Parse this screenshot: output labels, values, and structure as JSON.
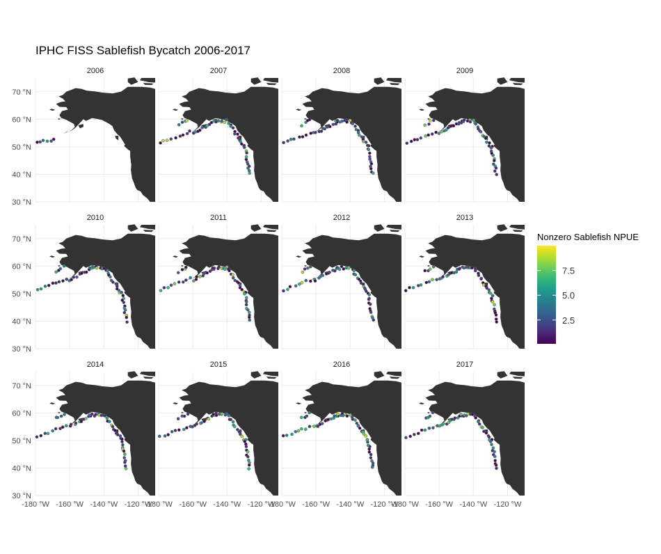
{
  "chart_data": {
    "type": "scatter",
    "title": "IPHC FISS Sablefish Bycatch 2006-2017",
    "facets": [
      "2006",
      "2007",
      "2008",
      "2009",
      "2010",
      "2011",
      "2012",
      "2013",
      "2014",
      "2015",
      "2016",
      "2017"
    ],
    "xlim": [
      -180,
      -110
    ],
    "ylim": [
      30,
      75
    ],
    "x_ticks": [
      -180,
      -160,
      -140,
      -120
    ],
    "x_tick_labels": [
      "-180 °W",
      "-160 °W",
      "-140 °W",
      "-120 °W"
    ],
    "y_ticks": [
      30,
      40,
      50,
      60,
      70
    ],
    "y_tick_labels": [
      "30 °N",
      "40 °N",
      "50 °N",
      "60 °N",
      "70 °N"
    ],
    "grid": true,
    "legend": {
      "title": "Nonzero Sablefish NPUE",
      "placement": "right",
      "ticks": [
        2.5,
        5.0,
        7.5
      ],
      "tick_labels": [
        "2.5",
        "5.0",
        "7.5"
      ],
      "range": [
        0.1,
        10
      ],
      "colors": [
        "#440154",
        "#482878",
        "#3e4a89",
        "#31688e",
        "#26828e",
        "#1f9e89",
        "#35b779",
        "#6ece58",
        "#b5de2b",
        "#fde725"
      ]
    },
    "land_color": "#333333",
    "point_outline": "#666666"
  }
}
